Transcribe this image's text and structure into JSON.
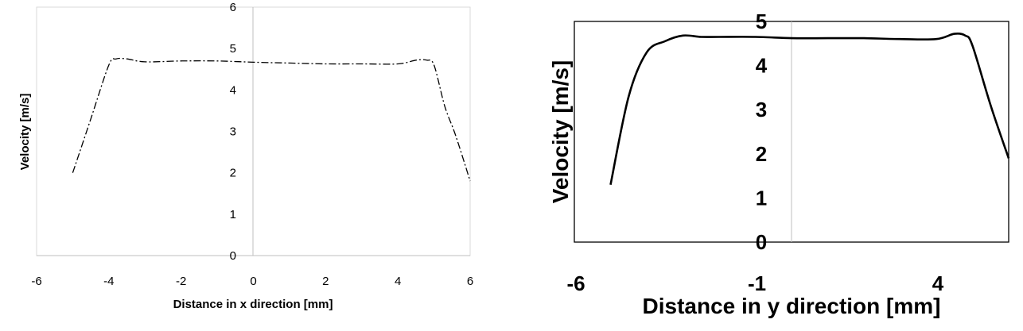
{
  "chart_data": [
    {
      "type": "line",
      "title": "",
      "xlabel": "Distance in x direction [mm]",
      "ylabel": "Velocity [m/s]",
      "xlim": [
        -6,
        6
      ],
      "ylim": [
        0,
        6
      ],
      "x_ticks": [
        "-6",
        "-4",
        "-2",
        "0",
        "2",
        "4",
        "6"
      ],
      "y_ticks": [
        "0",
        "1",
        "2",
        "3",
        "4",
        "5",
        "6"
      ],
      "line_style": "dash-dot",
      "grid": false,
      "series": [
        {
          "x": [
            -5.0,
            -4.5,
            -4.0,
            -3.8,
            -3.5,
            -3.0,
            -2.0,
            -1.0,
            0.0,
            1.0,
            2.0,
            3.0,
            4.0,
            4.5,
            4.8,
            5.0,
            5.3,
            5.6,
            6.0
          ],
          "values": [
            2.0,
            3.3,
            4.6,
            4.75,
            4.75,
            4.68,
            4.7,
            4.7,
            4.67,
            4.65,
            4.63,
            4.63,
            4.63,
            4.72,
            4.72,
            4.6,
            3.6,
            2.9,
            1.8
          ]
        }
      ]
    },
    {
      "type": "line",
      "title": "",
      "xlabel": "Distance in y direction [mm]",
      "ylabel": "Velocity [m/s]",
      "xlim": [
        -6,
        6
      ],
      "ylim": [
        0,
        5
      ],
      "x_ticks": [
        "-6",
        "-1",
        "4"
      ],
      "y_ticks": [
        "0",
        "1",
        "2",
        "3",
        "4",
        "5"
      ],
      "line_style": "solid",
      "grid": false,
      "series": [
        {
          "x": [
            -5.0,
            -4.5,
            -4.0,
            -3.5,
            -3.0,
            -2.5,
            -2.0,
            -1.0,
            0.0,
            1.0,
            2.0,
            3.0,
            4.0,
            4.5,
            4.8,
            5.0,
            5.5,
            6.0
          ],
          "values": [
            1.3,
            3.3,
            4.3,
            4.55,
            4.68,
            4.65,
            4.65,
            4.65,
            4.62,
            4.62,
            4.62,
            4.6,
            4.6,
            4.72,
            4.68,
            4.45,
            3.1,
            1.9
          ]
        }
      ]
    }
  ]
}
